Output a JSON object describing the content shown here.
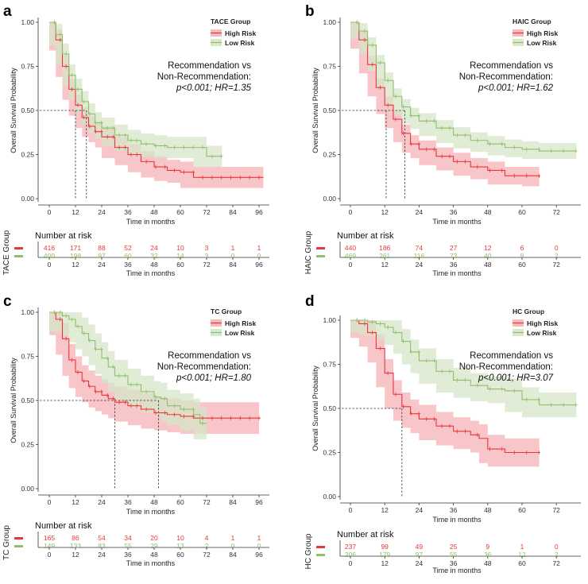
{
  "colors": {
    "high": "#e8373c",
    "low": "#8fbf6a",
    "high_band": "#f6b3b5",
    "low_band": "#d6e6c8",
    "axis": "#333333"
  },
  "common": {
    "xlabel": "Time in months",
    "ylabel": "Overall Survival Probability",
    "risk_table_title": "Number at risk",
    "legend_labels": [
      "High Risk",
      "Low Risk"
    ],
    "rec_line1": "Recommendation vs",
    "rec_line2": "Non-Recommendation:",
    "y_ticks": [
      "0.00",
      "0.25",
      "0.50",
      "0.75",
      "1.00"
    ]
  },
  "chart_data": [
    {
      "panel": "a",
      "type": "line",
      "legend_title": "TACE Group",
      "table_label": "TACE Group",
      "stats": "p<0.001; HR=1.35",
      "x_ticks": [
        0,
        12,
        24,
        36,
        48,
        60,
        72,
        84,
        96
      ],
      "xlim": [
        0,
        100
      ],
      "ylim": [
        0,
        1
      ],
      "medians": [
        12,
        17
      ],
      "series": [
        {
          "name": "High Risk",
          "x": [
            0,
            3,
            6,
            9,
            12,
            15,
            18,
            21,
            24,
            30,
            36,
            42,
            48,
            54,
            60,
            66,
            72,
            84,
            98
          ],
          "y": [
            1.0,
            0.9,
            0.75,
            0.62,
            0.53,
            0.46,
            0.41,
            0.38,
            0.35,
            0.29,
            0.25,
            0.21,
            0.18,
            0.16,
            0.15,
            0.12,
            0.12,
            0.12,
            0.12
          ],
          "band": 0.06
        },
        {
          "name": "Low Risk",
          "x": [
            0,
            3,
            6,
            9,
            12,
            15,
            18,
            21,
            24,
            30,
            36,
            42,
            48,
            54,
            60,
            66,
            72,
            79
          ],
          "y": [
            1.0,
            0.93,
            0.82,
            0.7,
            0.62,
            0.55,
            0.48,
            0.43,
            0.4,
            0.36,
            0.33,
            0.31,
            0.3,
            0.29,
            0.29,
            0.29,
            0.24,
            0.24
          ],
          "band": 0.06
        }
      ],
      "risk_table": {
        "times": [
          0,
          12,
          24,
          36,
          48,
          60,
          72,
          84,
          96
        ],
        "high": [
          "416",
          "171",
          "88",
          "52",
          "24",
          "10",
          "3",
          "1",
          "1"
        ],
        "low": [
          "400",
          "198",
          "97",
          "60",
          "32",
          "14",
          "3",
          "0",
          "0"
        ]
      }
    },
    {
      "panel": "b",
      "type": "line",
      "legend_title": "HAIC Group",
      "table_label": "HAIC Group",
      "stats": "p<0.001; HR=1.62",
      "x_ticks": [
        0,
        12,
        24,
        36,
        48,
        60,
        72
      ],
      "xlim": [
        0,
        80
      ],
      "ylim": [
        0,
        1
      ],
      "medians": [
        12.5,
        19
      ],
      "series": [
        {
          "name": "High Risk",
          "x": [
            0,
            3,
            6,
            9,
            12,
            15,
            18,
            21,
            24,
            30,
            36,
            42,
            48,
            54,
            60,
            66
          ],
          "y": [
            1.0,
            0.9,
            0.76,
            0.63,
            0.53,
            0.45,
            0.37,
            0.31,
            0.28,
            0.24,
            0.21,
            0.18,
            0.16,
            0.13,
            0.13,
            0.12
          ],
          "band": 0.05
        },
        {
          "name": "Low Risk",
          "x": [
            0,
            3,
            6,
            9,
            12,
            15,
            18,
            21,
            24,
            30,
            36,
            42,
            48,
            54,
            60,
            66,
            72,
            79
          ],
          "y": [
            1.0,
            0.95,
            0.87,
            0.77,
            0.67,
            0.58,
            0.52,
            0.47,
            0.44,
            0.4,
            0.36,
            0.33,
            0.31,
            0.29,
            0.28,
            0.27,
            0.27,
            0.27
          ],
          "band": 0.045
        }
      ],
      "risk_table": {
        "times": [
          0,
          12,
          24,
          36,
          48,
          60,
          72
        ],
        "high": [
          "440",
          "186",
          "74",
          "27",
          "12",
          "6",
          "0"
        ],
        "low": [
          "469",
          "261",
          "116",
          "73",
          "40",
          "8",
          "2"
        ]
      }
    },
    {
      "panel": "c",
      "type": "line",
      "legend_title": "TC Group",
      "table_label": "TC Group",
      "stats": "p<0.001; HR=1.80",
      "x_ticks": [
        0,
        12,
        24,
        36,
        48,
        60,
        72,
        84,
        96
      ],
      "xlim": [
        0,
        100
      ],
      "ylim": [
        0,
        1
      ],
      "medians": [
        30,
        50
      ],
      "series": [
        {
          "name": "High Risk",
          "x": [
            0,
            3,
            6,
            9,
            12,
            15,
            18,
            21,
            24,
            27,
            30,
            36,
            42,
            48,
            54,
            60,
            66,
            72,
            84,
            96
          ],
          "y": [
            1.0,
            0.96,
            0.85,
            0.73,
            0.66,
            0.61,
            0.58,
            0.55,
            0.53,
            0.51,
            0.49,
            0.47,
            0.45,
            0.43,
            0.42,
            0.41,
            0.4,
            0.4,
            0.4,
            0.4
          ],
          "band": 0.09
        },
        {
          "name": "Low Risk",
          "x": [
            0,
            6,
            9,
            12,
            15,
            18,
            21,
            24,
            27,
            30,
            36,
            42,
            48,
            51,
            54,
            60,
            66,
            69,
            72
          ],
          "y": [
            1.0,
            0.98,
            0.96,
            0.92,
            0.88,
            0.84,
            0.79,
            0.74,
            0.69,
            0.64,
            0.59,
            0.55,
            0.52,
            0.51,
            0.47,
            0.45,
            0.42,
            0.37,
            0.37
          ],
          "band": 0.09
        }
      ],
      "risk_table": {
        "times": [
          0,
          12,
          24,
          36,
          48,
          60,
          72,
          84,
          96
        ],
        "high": [
          "165",
          "86",
          "54",
          "34",
          "20",
          "10",
          "4",
          "1",
          "1"
        ],
        "low": [
          "149",
          "133",
          "83",
          "55",
          "29",
          "13",
          "2",
          "0",
          "0"
        ]
      }
    },
    {
      "panel": "d",
      "type": "line",
      "legend_title": "HC Group",
      "table_label": "HC Group",
      "stats": "p<0.001; HR=3.07",
      "x_ticks": [
        0,
        12,
        24,
        36,
        48,
        60,
        72
      ],
      "xlim": [
        0,
        80
      ],
      "ylim": [
        0,
        1
      ],
      "medians": [
        18
      ],
      "series": [
        {
          "name": "High Risk",
          "x": [
            0,
            3,
            6,
            9,
            12,
            15,
            18,
            21,
            24,
            30,
            36,
            42,
            45,
            48,
            54,
            60,
            66
          ],
          "y": [
            1.0,
            0.98,
            0.93,
            0.84,
            0.7,
            0.58,
            0.51,
            0.47,
            0.44,
            0.4,
            0.37,
            0.35,
            0.33,
            0.27,
            0.25,
            0.25,
            0.25
          ],
          "band": 0.08
        },
        {
          "name": "Low Risk",
          "x": [
            0,
            3,
            6,
            9,
            12,
            15,
            18,
            21,
            24,
            30,
            36,
            42,
            48,
            54,
            60,
            66,
            72,
            79
          ],
          "y": [
            1.0,
            1.0,
            0.99,
            0.98,
            0.96,
            0.93,
            0.88,
            0.82,
            0.77,
            0.71,
            0.66,
            0.63,
            0.61,
            0.6,
            0.55,
            0.52,
            0.52,
            0.52
          ],
          "band": 0.07
        }
      ],
      "risk_table": {
        "times": [
          0,
          12,
          24,
          36,
          48,
          60,
          72
        ],
        "high": [
          "237",
          "99",
          "49",
          "25",
          "9",
          "1",
          "0"
        ],
        "low": [
          "206",
          "179",
          "97",
          "55",
          "36",
          "12",
          "2"
        ]
      }
    }
  ]
}
